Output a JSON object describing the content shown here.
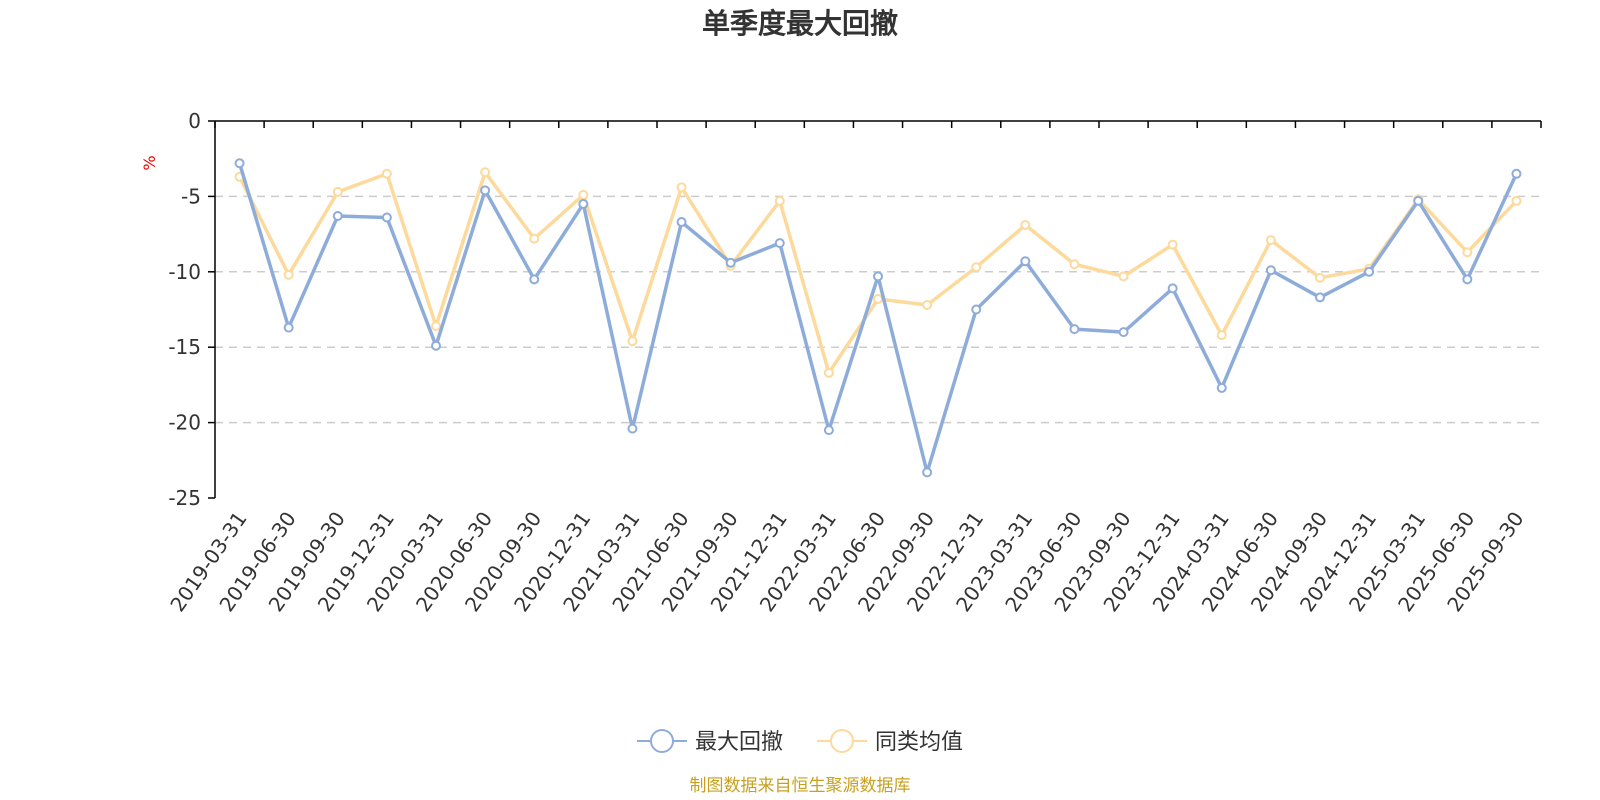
{
  "chart_data": {
    "type": "line",
    "title": "单季度最大回撤",
    "ylabel": "%",
    "xlabel": "",
    "ylim": [
      -25,
      0
    ],
    "yticks": [
      "0",
      "-5",
      "-10",
      "-15",
      "-20",
      "-25"
    ],
    "grid": "horizontal dashed",
    "legend_position": "bottom",
    "categories": [
      "2019-03-31",
      "2019-06-30",
      "2019-09-30",
      "2019-12-31",
      "2020-03-31",
      "2020-06-30",
      "2020-09-30",
      "2020-12-31",
      "2021-03-31",
      "2021-06-30",
      "2021-09-30",
      "2021-12-31",
      "2022-03-31",
      "2022-06-30",
      "2022-09-30",
      "2022-12-31",
      "2023-03-31",
      "2023-06-30",
      "2023-09-30",
      "2023-12-31",
      "2024-03-31",
      "2024-06-30",
      "2024-09-30",
      "2024-12-31",
      "2025-03-31",
      "2025-06-30",
      "2025-09-30"
    ],
    "series": [
      {
        "name": "最大回撤",
        "color": "#8eacda",
        "values": [
          -2.8,
          -13.7,
          -6.3,
          -6.4,
          -14.9,
          -4.6,
          -10.5,
          -5.5,
          -20.4,
          -6.7,
          -9.4,
          -8.1,
          -20.5,
          -10.3,
          -23.3,
          -12.5,
          -9.3,
          -13.8,
          -14.0,
          -11.1,
          -17.7,
          -9.9,
          -11.7,
          -10.0,
          -5.3,
          -10.5,
          -3.5
        ]
      },
      {
        "name": "同类均值",
        "color": "#fdd99b",
        "values": [
          -3.7,
          -10.2,
          -4.7,
          -3.5,
          -13.6,
          -3.4,
          -7.8,
          -4.9,
          -14.6,
          -4.4,
          -9.6,
          -5.3,
          -16.7,
          -11.8,
          -12.2,
          -9.7,
          -6.9,
          -9.5,
          -10.3,
          -8.2,
          -14.2,
          -7.9,
          -10.4,
          -9.8,
          -5.2,
          -8.7,
          -5.3
        ]
      }
    ]
  },
  "source_text": "制图数据来自恒生聚源数据库",
  "colors": {
    "axis": "#000000",
    "grid": "#cccccc",
    "text": "#333333",
    "unit": "#ee0000",
    "source": "#c8a020"
  }
}
